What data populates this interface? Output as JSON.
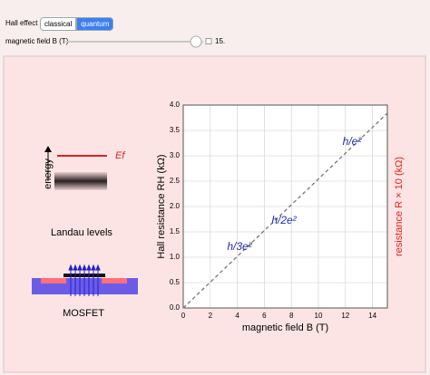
{
  "controls": {
    "title": "Hall effect",
    "buttons": [
      "classical",
      "quantum"
    ],
    "selected_index": 1,
    "slider_label": "magnetic field B (T)",
    "slider_value": "15."
  },
  "diagram": {
    "energy_label": "energy",
    "fermi_label": "Ef",
    "landau_caption": "Landau levels",
    "mosfet_caption": "MOSFET"
  },
  "chart_data": {
    "type": "line",
    "x_label": "magnetic field B (T)",
    "y_label": "Hall resistance RH (kΩ)",
    "y2_label": "resistance R × 10 (kΩ)",
    "x": [
      0,
      15.1
    ],
    "series": [
      {
        "color": "#777777",
        "values": [
          0,
          3.84
        ]
      }
    ],
    "line_style": "dashed",
    "annotations": [
      "h/e²",
      "h/2e²",
      "h/3e²"
    ],
    "annotation_color": "#2a2ab0",
    "y2_color": "#e0201c",
    "xlim": [
      0,
      15.1
    ],
    "xticks": [
      0,
      2,
      4,
      6,
      8,
      10,
      12,
      14
    ],
    "ylim": [
      0,
      4
    ],
    "yticks": [
      {
        "value": 0,
        "label": "0.0"
      },
      0.5,
      {
        "value": 1,
        "label": "1.0"
      },
      1.5,
      {
        "value": 2,
        "label": "2.0"
      },
      2.5,
      {
        "value": 3,
        "label": "3.0"
      },
      3.5,
      {
        "value": 4,
        "label": "4.0"
      }
    ],
    "grid": true
  }
}
